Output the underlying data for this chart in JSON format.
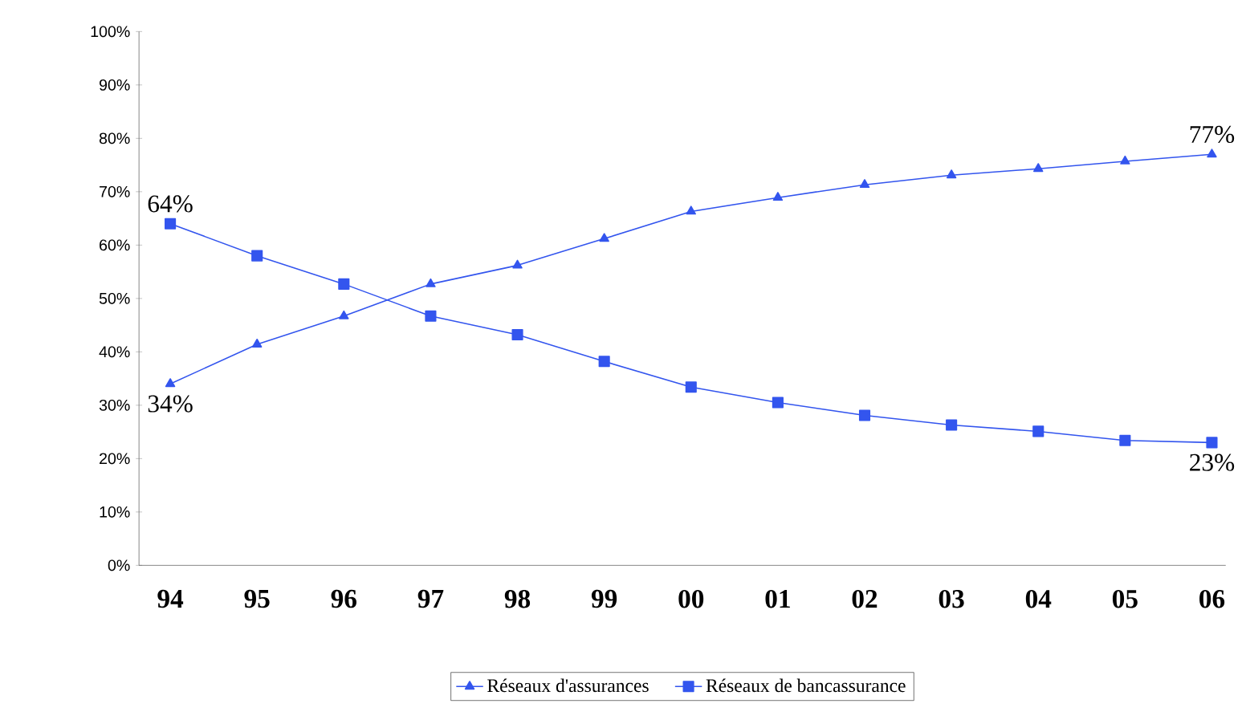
{
  "chart_data": {
    "type": "line",
    "categories": [
      "94",
      "95",
      "96",
      "97",
      "98",
      "99",
      "00",
      "01",
      "02",
      "03",
      "04",
      "05",
      "06"
    ],
    "series": [
      {
        "name": "Réseaux d'assurances",
        "color": "#3355ee",
        "marker": "triangle",
        "values": [
          34,
          41.4,
          46.7,
          52.7,
          56.2,
          61.2,
          66.3,
          68.9,
          71.3,
          73.1,
          74.3,
          75.7,
          77
        ],
        "value_labels": [
          "34%",
          null,
          null,
          null,
          null,
          null,
          null,
          null,
          null,
          null,
          null,
          null,
          "77%"
        ]
      },
      {
        "name": "Réseaux de bancassurance",
        "color": "#3355ee",
        "marker": "square",
        "values": [
          64,
          58,
          52.7,
          46.7,
          43.2,
          38.2,
          33.4,
          30.5,
          28.1,
          26.3,
          25.1,
          23.4,
          23
        ],
        "value_labels": [
          "64%",
          null,
          null,
          null,
          null,
          null,
          null,
          null,
          null,
          null,
          null,
          null,
          "23%"
        ]
      }
    ],
    "ylim": [
      0,
      100
    ],
    "yticks": [
      {
        "value": 0,
        "label": "0%"
      },
      {
        "value": 10,
        "label": "10%"
      },
      {
        "value": 20,
        "label": "20%"
      },
      {
        "value": 30,
        "label": "30%"
      },
      {
        "value": 40,
        "label": "40%"
      },
      {
        "value": 50,
        "label": "50%"
      },
      {
        "value": 60,
        "label": "60%"
      },
      {
        "value": 70,
        "label": "70%"
      },
      {
        "value": 80,
        "label": "80%"
      },
      {
        "value": 90,
        "label": "90%"
      },
      {
        "value": 100,
        "label": "100%"
      }
    ],
    "legend": "bottom",
    "line_style": "solid"
  }
}
